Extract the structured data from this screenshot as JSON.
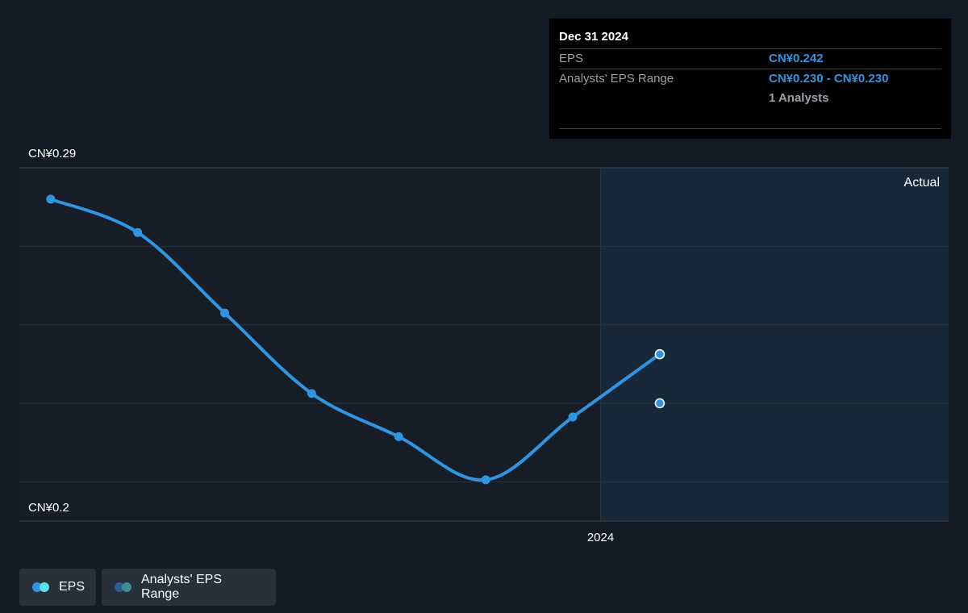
{
  "chart_data": {
    "type": "line",
    "y_tick_labels": [
      "CN¥0.29",
      "CN¥0.2"
    ],
    "ylim": [
      0.2,
      0.29
    ],
    "x_tick_labels": [
      {
        "label": "2024",
        "x": 2024.0
      }
    ],
    "xlim": [
      2022.33,
      2025.0
    ],
    "actual_region_start": 2024.0,
    "actual_label": "Actual",
    "grid": true,
    "series": [
      {
        "name": "EPS",
        "color": "#2f95e0",
        "points": [
          {
            "x": 2022.42,
            "y": 0.282
          },
          {
            "x": 2022.67,
            "y": 0.2735
          },
          {
            "x": 2022.92,
            "y": 0.253
          },
          {
            "x": 2023.17,
            "y": 0.2325
          },
          {
            "x": 2023.42,
            "y": 0.2215
          },
          {
            "x": 2023.67,
            "y": 0.2105
          },
          {
            "x": 2023.92,
            "y": 0.2265
          },
          {
            "x": 2024.17,
            "y": 0.2425
          }
        ]
      },
      {
        "name": "Analysts' EPS Range",
        "color": "#2f95e0",
        "points": [
          {
            "x": 2024.17,
            "y": 0.23
          }
        ]
      }
    ]
  },
  "tooltip": {
    "date": "Dec 31 2024",
    "eps_label": "EPS",
    "eps_value": "CN¥0.242",
    "range_label": "Analysts' EPS Range",
    "range_value": "CN¥0.230 - CN¥0.230",
    "analysts_count": "1 Analysts"
  },
  "legend": {
    "eps_label": "EPS",
    "eps_colors": [
      "#2f95e0",
      "#5ee0e6"
    ],
    "range_label": "Analysts' EPS Range",
    "range_colors": [
      "#2a5f91",
      "#3b8f8f"
    ]
  },
  "colors": {
    "background": "#151b24",
    "forecast_area": "#16283a",
    "grid": "#2c333d",
    "line": "#2f95e0"
  }
}
